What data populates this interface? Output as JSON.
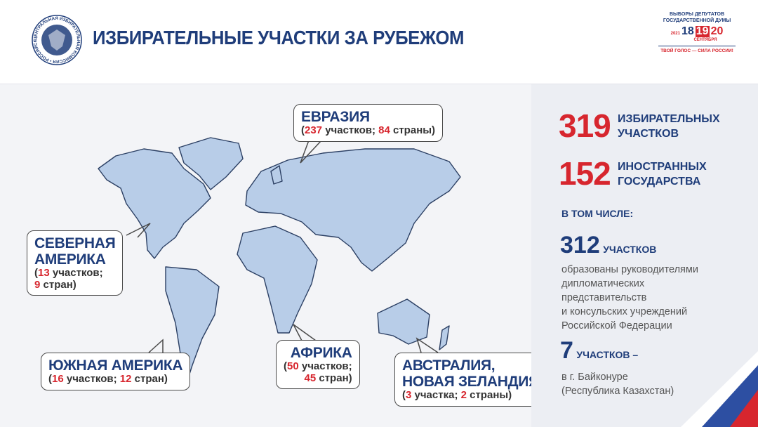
{
  "header": {
    "title": "ИЗБИРАТЕЛЬНЫЕ УЧАСТКИ ЗА РУБЕЖОМ",
    "emblem_text": "ЦЕНТРАЛЬНАЯ ИЗБИРАТЕЛЬНАЯ КОМИССИЯ • РОССИЙСКОЙ ФЕДЕРАЦИИ •",
    "election": {
      "title_lines": [
        "ВЫБОРЫ ДЕПУТАТОВ",
        "ГОСУДАРСТВЕННОЙ ДУМЫ"
      ],
      "year": "2021",
      "days": [
        "18",
        "19",
        "20"
      ],
      "month": "СЕНТЯБРЯ",
      "slogan": "ТВОЙ ГОЛОС — СИЛА РОССИИ!"
    }
  },
  "regions": [
    {
      "name_lines": [
        "ЕВРАЗИЯ"
      ],
      "detail_lines": [
        [
          {
            "text": "(",
            "accent": false
          },
          {
            "text": "237",
            "accent": true
          },
          {
            "text": " участков; ",
            "accent": false
          },
          {
            "text": "84",
            "accent": true
          },
          {
            "text": " страны)",
            "accent": false
          }
        ]
      ]
    },
    {
      "name_lines": [
        "СЕВЕРНАЯ",
        "АМЕРИКА"
      ],
      "detail_lines": [
        [
          {
            "text": "(",
            "accent": false
          },
          {
            "text": "13",
            "accent": true
          },
          {
            "text": " участков;",
            "accent": false
          }
        ],
        [
          {
            "text": "9",
            "accent": true
          },
          {
            "text": " стран)",
            "accent": false
          }
        ]
      ]
    },
    {
      "name_lines": [
        "ЮЖНАЯ АМЕРИКА"
      ],
      "detail_lines": [
        [
          {
            "text": "(",
            "accent": false
          },
          {
            "text": "16",
            "accent": true
          },
          {
            "text": " участков; ",
            "accent": false
          },
          {
            "text": "12",
            "accent": true
          },
          {
            "text": " стран)",
            "accent": false
          }
        ]
      ]
    },
    {
      "name_lines": [
        "АФРИКА"
      ],
      "detail_lines": [
        [
          {
            "text": "(",
            "accent": false
          },
          {
            "text": "50",
            "accent": true
          },
          {
            "text": " участков;",
            "accent": false
          }
        ],
        [
          {
            "text": "45",
            "accent": true
          },
          {
            "text": " стран)",
            "accent": false
          }
        ]
      ]
    },
    {
      "name_lines": [
        "АВСТРАЛИЯ,",
        "НОВАЯ ЗЕЛАНДИЯ"
      ],
      "detail_lines": [
        [
          {
            "text": "(",
            "accent": false
          },
          {
            "text": "3",
            "accent": true
          },
          {
            "text": " участка; ",
            "accent": false
          },
          {
            "text": "2",
            "accent": true
          },
          {
            "text": " страны)",
            "accent": false
          }
        ]
      ]
    }
  ],
  "summary": {
    "stations": {
      "number": "319",
      "label_lines": [
        "ИЗБИРАТЕЛЬНЫХ",
        "УЧАСТКОВ"
      ]
    },
    "countries": {
      "number": "152",
      "label_lines": [
        "ИНОСТРАННЫХ",
        "ГОСУДАРСТВА"
      ]
    },
    "including": "В ТОМ ЧИСЛЕ:",
    "diplomatic": {
      "number": "312",
      "unit": "УЧАСТКОВ",
      "description_lines": [
        "образованы руководителями",
        "дипломатических",
        "представительств",
        "и консульских учреждений",
        "Российской Федерации"
      ]
    },
    "baikonur": {
      "number": "7",
      "unit": "УЧАСТКОВ –",
      "description_lines": [
        "в г. Байконуре",
        "(Республика Казахстан)"
      ]
    }
  }
}
